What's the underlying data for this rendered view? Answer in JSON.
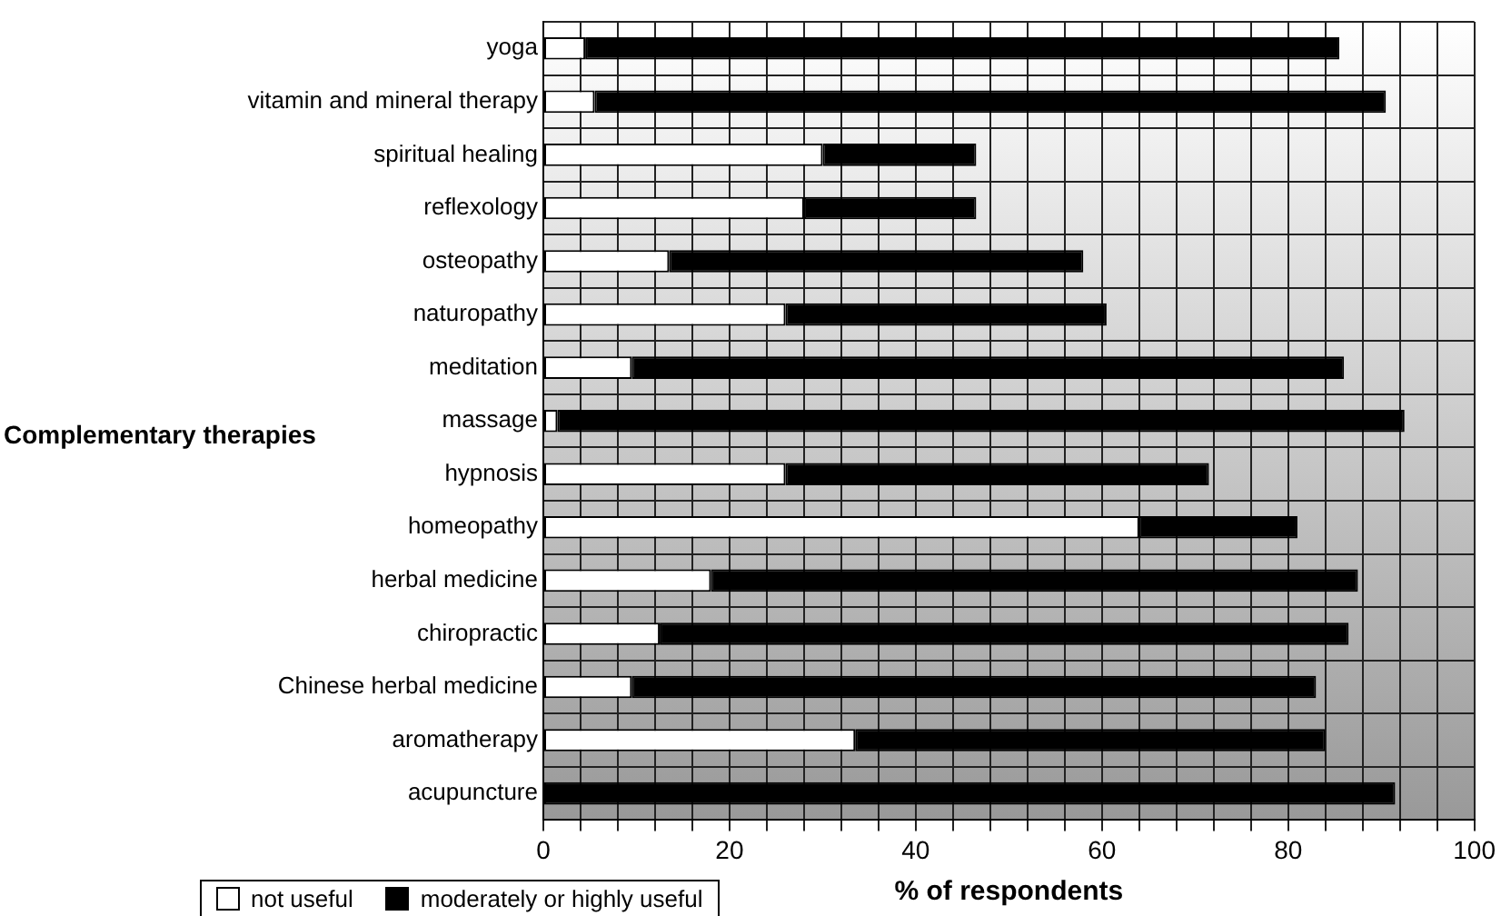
{
  "chart_data": {
    "type": "bar",
    "orientation": "horizontal",
    "stacked": true,
    "ylabel": "Complementary therapies",
    "xlabel": "% of respondents",
    "categories": [
      "yoga",
      "vitamin and mineral therapy",
      "spiritual healing",
      "reflexology",
      "osteopathy",
      "naturopathy",
      "meditation",
      "massage",
      "hypnosis",
      "homeopathy",
      "herbal medicine",
      "chiropractic",
      "Chinese herbal medicine",
      "aromatherapy",
      "acupuncture"
    ],
    "series": [
      {
        "name": "not useful",
        "color": "#ffffff",
        "values": [
          4.5,
          5.5,
          30,
          28,
          13.5,
          26,
          9.5,
          1.5,
          26,
          64,
          18,
          12.5,
          9.5,
          33.5,
          0
        ]
      },
      {
        "name": "moderately or highly useful",
        "color": "#000000",
        "values": [
          81,
          85,
          16.5,
          18.5,
          44.5,
          34.5,
          76.5,
          91,
          45.5,
          17,
          69.5,
          74,
          73.5,
          50.5,
          91.5
        ]
      }
    ],
    "xlim": [
      0,
      100
    ],
    "xticks": [
      0,
      {
        "value": 4,
        "label": null
      },
      {
        "value": 8,
        "label": null
      },
      {
        "value": 12,
        "label": null
      },
      {
        "value": 16,
        "label": null
      },
      20,
      {
        "value": 24,
        "label": null
      },
      {
        "value": 28,
        "label": null
      },
      {
        "value": 32,
        "label": null
      },
      {
        "value": 36,
        "label": null
      },
      40,
      {
        "value": 44,
        "label": null
      },
      {
        "value": 48,
        "label": null
      },
      {
        "value": 52,
        "label": null
      },
      {
        "value": 56,
        "label": null
      },
      60,
      {
        "value": 64,
        "label": null
      },
      {
        "value": 68,
        "label": null
      },
      {
        "value": 72,
        "label": null
      },
      {
        "value": 76,
        "label": null
      },
      80,
      {
        "value": 84,
        "label": null
      },
      {
        "value": 88,
        "label": null
      },
      {
        "value": 92,
        "label": null
      },
      {
        "value": 96,
        "label": null
      },
      100
    ],
    "grid": true,
    "legend": "bottom left"
  }
}
